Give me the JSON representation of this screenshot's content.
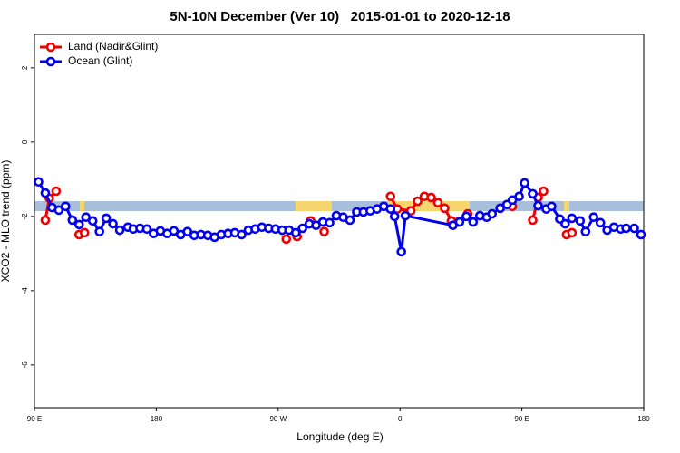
{
  "chart_data": {
    "type": "line",
    "title": "5N-10N December (Ver 10)   2015-01-01 to 2020-12-18",
    "xlabel": "Longitude (deg E)",
    "ylabel": "XCO2 - MLO trend (ppm)",
    "xlim": [
      90,
      540
    ],
    "xticks": [
      {
        "value": 90,
        "label": "90 E"
      },
      180,
      {
        "value": 270,
        "label": "90 W"
      },
      {
        "value": 360,
        "label": "0"
      },
      {
        "value": 450,
        "label": "90 E"
      },
      {
        "value": 540,
        "label": "180"
      }
    ],
    "ylim": [
      -7.15,
      2.9
    ],
    "yticks": [
      2,
      0,
      -2,
      -4,
      -6
    ],
    "legend": "top-left",
    "series": [
      {
        "name": "Land (Nadir&Glint)",
        "color": "#ee0000",
        "x": [
          98,
          101,
          106,
          null,
          123,
          127,
          null,
          276,
          null,
          284,
          null,
          294,
          null,
          304,
          null,
          353,
          358,
          368,
          373,
          378,
          383,
          388,
          393,
          398,
          403,
          410,
          null,
          443,
          null,
          458,
          462,
          466,
          null,
          483,
          487
        ],
        "values": [
          -2.1,
          -1.51,
          -1.32,
          null,
          -2.49,
          -2.44,
          null,
          -2.61,
          null,
          -2.54,
          null,
          -2.12,
          null,
          -2.41,
          null,
          -1.46,
          -1.8,
          -1.85,
          -1.59,
          -1.46,
          -1.49,
          -1.63,
          -1.78,
          -2.12,
          -2.15,
          -1.93,
          null,
          -1.73,
          null,
          -2.1,
          -1.49,
          -1.32,
          null,
          -2.49,
          -2.44
        ]
      },
      {
        "name": "Ocean (Glint)",
        "color": "#0000ee",
        "x": [
          93,
          98,
          103,
          108,
          113,
          118,
          123,
          128,
          133,
          138,
          143,
          148,
          153,
          159,
          163,
          168,
          173,
          178,
          183,
          188,
          193,
          198,
          203,
          208,
          213,
          218,
          223,
          228,
          233,
          238,
          243,
          248,
          253,
          258,
          263,
          268,
          273,
          278,
          283,
          288,
          293,
          298,
          303,
          308,
          313,
          318,
          323,
          328,
          333,
          338,
          343,
          348,
          353,
          356,
          361,
          364,
          399,
          404,
          409,
          414,
          419,
          424,
          428,
          434,
          439,
          443,
          448,
          452,
          458,
          462,
          468,
          472,
          478,
          482,
          487,
          493,
          497,
          503,
          508,
          513,
          518,
          523,
          527,
          533,
          538
        ],
        "values": [
          -1.07,
          -1.37,
          -1.76,
          -1.83,
          -1.73,
          -2.1,
          -2.22,
          -2.02,
          -2.12,
          -2.41,
          -2.05,
          -2.2,
          -2.37,
          -2.29,
          -2.34,
          -2.32,
          -2.34,
          -2.46,
          -2.39,
          -2.46,
          -2.39,
          -2.49,
          -2.41,
          -2.51,
          -2.49,
          -2.51,
          -2.56,
          -2.49,
          -2.46,
          -2.44,
          -2.49,
          -2.37,
          -2.34,
          -2.29,
          -2.32,
          -2.34,
          -2.37,
          -2.37,
          -2.44,
          -2.32,
          -2.2,
          -2.24,
          -2.15,
          -2.17,
          -1.98,
          -2.02,
          -2.1,
          -1.88,
          -1.88,
          -1.85,
          -1.8,
          -1.73,
          -1.8,
          -2.0,
          -2.95,
          -1.98,
          -2.24,
          -2.15,
          -2.0,
          -2.15,
          -1.98,
          -2.02,
          -1.93,
          -1.78,
          -1.68,
          -1.56,
          -1.46,
          -1.1,
          -1.39,
          -1.71,
          -1.8,
          -1.73,
          -2.07,
          -2.2,
          -2.05,
          -2.12,
          -2.41,
          -2.02,
          -2.17,
          -2.37,
          -2.29,
          -2.34,
          -2.32,
          -2.32,
          -2.49
        ]
      }
    ]
  }
}
